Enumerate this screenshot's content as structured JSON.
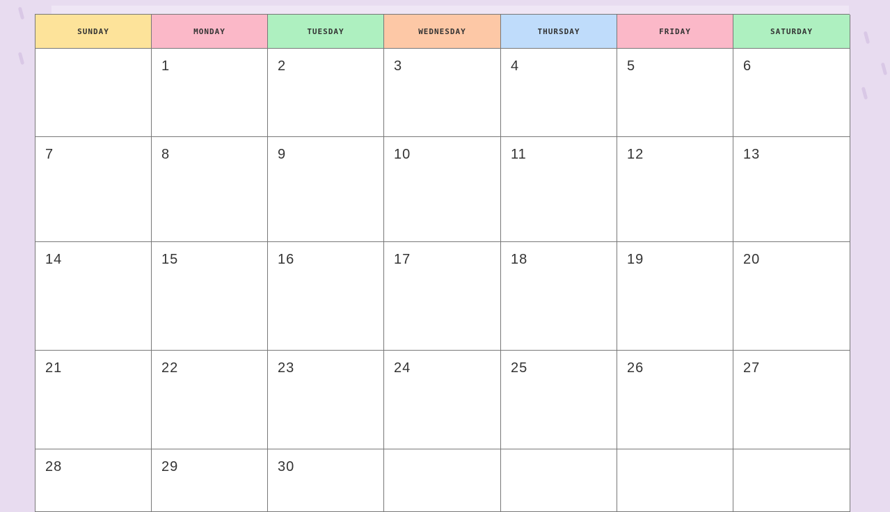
{
  "days": [
    {
      "label": "SUNDAY",
      "color": "#fde39a"
    },
    {
      "label": "MONDAY",
      "color": "#fbb8c8"
    },
    {
      "label": "TUESDAY",
      "color": "#aef0c0"
    },
    {
      "label": "WEDNESDAY",
      "color": "#fdc8a6"
    },
    {
      "label": "THURSDAY",
      "color": "#bfdcfb"
    },
    {
      "label": "FRIDAY",
      "color": "#fbb8c8"
    },
    {
      "label": "SATURDAY",
      "color": "#aef0c0"
    }
  ],
  "cells": [
    "",
    "1",
    "2",
    "3",
    "4",
    "5",
    "6",
    "7",
    "8",
    "9",
    "10",
    "11",
    "12",
    "13",
    "14",
    "15",
    "16",
    "17",
    "18",
    "19",
    "20",
    "21",
    "22",
    "23",
    "24",
    "25",
    "26",
    "27",
    "28",
    "29",
    "30",
    "",
    "",
    "",
    ""
  ]
}
